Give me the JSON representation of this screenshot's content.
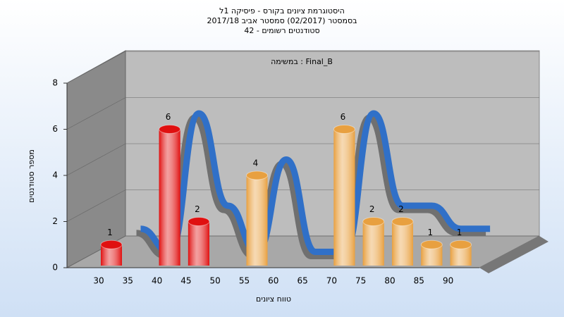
{
  "chart_data": {
    "type": "bar",
    "title": [
      "היסטוגרמת ציונים בקורס - פיסיקה 1ל",
      "בסמסטר (02/2017) סמסטר אביב 2017/18",
      "42 - סטודנטים רשומים"
    ],
    "subtitle": "במשימה : Final_B",
    "x_label": "טווח ציונים",
    "y_label": "מספר סטודנטים",
    "categories": [
      "30",
      "35",
      "40",
      "45",
      "50",
      "55",
      "60",
      "65",
      "70",
      "75",
      "80",
      "85",
      "90"
    ],
    "values": [
      1,
      0,
      6,
      2,
      0,
      4,
      0,
      0,
      6,
      2,
      2,
      1,
      1
    ],
    "colors": [
      "#e01010",
      "#e01010",
      "#e01010",
      "#e01010",
      "#e01010",
      "#e8a040",
      "#e8a040",
      "#e8a040",
      "#e8a040",
      "#e8a040",
      "#e8a040",
      "#e8a040",
      "#e8a040"
    ],
    "line_color": "#3070c8",
    "ylim": [
      0,
      8
    ],
    "yticks": [
      0,
      2,
      4,
      6,
      8
    ],
    "grid": true
  }
}
